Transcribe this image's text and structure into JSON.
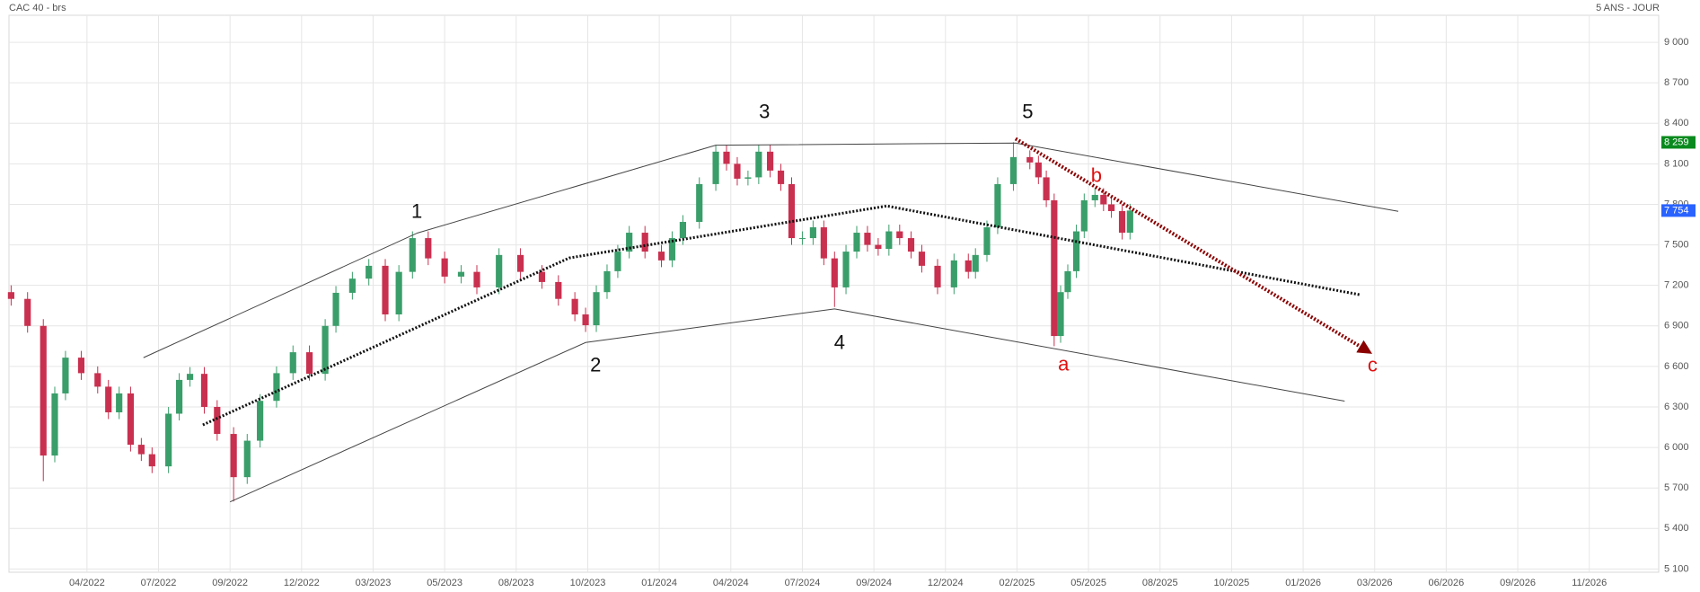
{
  "chart_data": {
    "type": "candlestick",
    "title": "CAC 40 - brs",
    "subtitle": "5 ANS - JOUR",
    "up_color": "#3a9e6a",
    "down_color": "#c9304f",
    "grid": true,
    "xlim": [
      -0.09,
      22.97
    ],
    "xticks": [
      {
        "value": 1,
        "label": "04/2022"
      },
      {
        "value": 2,
        "label": "07/2022"
      },
      {
        "value": 3,
        "label": "09/2022"
      },
      {
        "value": 4,
        "label": "12/2022"
      },
      {
        "value": 5,
        "label": "03/2023"
      },
      {
        "value": 6,
        "label": "05/2023"
      },
      {
        "value": 7,
        "label": "08/2023"
      },
      {
        "value": 8,
        "label": "10/2023"
      },
      {
        "value": 9,
        "label": "01/2024"
      },
      {
        "value": 10,
        "label": "04/2024"
      },
      {
        "value": 11,
        "label": "07/2024"
      },
      {
        "value": 12,
        "label": "09/2024"
      },
      {
        "value": 13,
        "label": "12/2024"
      },
      {
        "value": 14,
        "label": "02/2025"
      },
      {
        "value": 15,
        "label": "05/2025"
      },
      {
        "value": 16,
        "label": "08/2025"
      },
      {
        "value": 17,
        "label": "10/2025"
      },
      {
        "value": 18,
        "label": "01/2026"
      },
      {
        "value": 19,
        "label": "03/2026"
      },
      {
        "value": 20,
        "label": "06/2026"
      },
      {
        "value": 21,
        "label": "09/2026"
      },
      {
        "value": 22,
        "label": "11/2026"
      }
    ],
    "ylim": [
      5076,
      9200
    ],
    "yticks": [
      {
        "value": 5100,
        "label": "5 100"
      },
      {
        "value": 5400,
        "label": "5 400"
      },
      {
        "value": 5700,
        "label": "5 700"
      },
      {
        "value": 6000,
        "label": "6 000"
      },
      {
        "value": 6300,
        "label": "6 300"
      },
      {
        "value": 6600,
        "label": "6 600"
      },
      {
        "value": 6900,
        "label": "6 900"
      },
      {
        "value": 7200,
        "label": "7 200"
      },
      {
        "value": 7500,
        "label": "7 500"
      },
      {
        "value": 7800,
        "label": "7 800"
      },
      {
        "value": 8100,
        "label": "8 100"
      },
      {
        "value": 8400,
        "label": "8 400"
      },
      {
        "value": 8700,
        "label": "8 700"
      },
      {
        "value": 9000,
        "label": "9 000"
      }
    ],
    "x": [
      -0.06,
      0.17,
      0.39,
      0.55,
      0.7,
      0.92,
      1.15,
      1.3,
      1.45,
      1.61,
      1.76,
      1.91,
      2.14,
      2.29,
      2.44,
      2.64,
      2.82,
      3.05,
      3.24,
      3.42,
      3.65,
      3.88,
      4.11,
      4.33,
      4.48,
      4.71,
      4.94,
      5.17,
      5.36,
      5.55,
      5.77,
      6.0,
      6.23,
      6.45,
      6.76,
      7.06,
      7.36,
      7.59,
      7.82,
      7.97,
      8.12,
      8.27,
      8.42,
      8.58,
      8.8,
      9.03,
      9.18,
      9.33,
      9.56,
      9.79,
      9.94,
      10.09,
      10.24,
      10.39,
      10.55,
      10.7,
      10.85,
      11.0,
      11.15,
      11.3,
      11.45,
      11.61,
      11.76,
      11.91,
      12.06,
      12.21,
      12.36,
      12.52,
      12.67,
      12.89,
      13.12,
      13.32,
      13.42,
      13.58,
      13.73,
      13.95,
      14.18,
      14.3,
      14.41,
      14.52,
      14.61,
      14.71,
      14.83,
      14.94,
      15.09,
      15.21,
      15.32,
      15.47,
      15.58
    ],
    "open": [
      7150,
      7100,
      6900,
      5940,
      6400,
      6665,
      6550,
      6450,
      6260,
      6400,
      6020,
      5950,
      5860,
      6250,
      6500,
      6545,
      6300,
      6100,
      5780,
      6050,
      6345,
      6550,
      6705,
      6545,
      6900,
      7145,
      7250,
      7345,
      6985,
      7300,
      7550,
      7400,
      7265,
      7300,
      7185,
      7425,
      7300,
      7225,
      7100,
      6985,
      6905,
      7150,
      7305,
      7450,
      7590,
      7450,
      7385,
      7550,
      7670,
      7950,
      8190,
      8100,
      7990,
      8000,
      8190,
      8050,
      7950,
      7550,
      7550,
      7630,
      7400,
      7185,
      7450,
      7590,
      7500,
      7470,
      7600,
      7550,
      7450,
      7345,
      7185,
      7385,
      7300,
      7425,
      7630,
      7950,
      8150,
      8110,
      8000,
      7830,
      6825,
      7150,
      7305,
      7600,
      7830,
      7870,
      7800,
      7750,
      7590
    ],
    "high": [
      7200,
      7150,
      6950,
      6450,
      6715,
      6715,
      6600,
      6500,
      6450,
      6450,
      6070,
      6000,
      6300,
      6550,
      6595,
      6595,
      6350,
      6150,
      6100,
      6395,
      6600,
      6755,
      6755,
      6950,
      7195,
      7300,
      7395,
      7395,
      7350,
      7600,
      7600,
      7450,
      7350,
      7350,
      7475,
      7475,
      7350,
      7275,
      7150,
      7035,
      7200,
      7355,
      7500,
      7640,
      7640,
      7500,
      7600,
      7720,
      8000,
      8240,
      8240,
      8150,
      8050,
      8240,
      8240,
      8100,
      8000,
      7600,
      7680,
      7680,
      7450,
      7500,
      7640,
      7640,
      7550,
      7650,
      7650,
      7600,
      7500,
      7395,
      7435,
      7435,
      7475,
      7680,
      8000,
      8260,
      8200,
      8160,
      8050,
      7880,
      7200,
      7355,
      7650,
      7880,
      7920,
      7920,
      7850,
      7800,
      7804
    ],
    "low": [
      7050,
      6850,
      5750,
      5890,
      6350,
      6500,
      6400,
      6210,
      6210,
      5970,
      5900,
      5810,
      5810,
      6200,
      6450,
      6250,
      6050,
      5600,
      5730,
      6000,
      6295,
      6500,
      6495,
      6495,
      6850,
      7095,
      7200,
      6935,
      6935,
      7250,
      7350,
      7215,
      7215,
      7135,
      7135,
      7250,
      7175,
      7050,
      6935,
      6855,
      6855,
      7100,
      7255,
      7400,
      7400,
      7335,
      7335,
      7500,
      7620,
      7900,
      8050,
      7940,
      7940,
      7950,
      8000,
      7900,
      7500,
      7500,
      7500,
      7350,
      7040,
      7135,
      7400,
      7450,
      7420,
      7420,
      7500,
      7400,
      7295,
      7135,
      7135,
      7250,
      7250,
      7375,
      7580,
      7900,
      8060,
      7950,
      7780,
      6750,
      6775,
      7100,
      7255,
      7550,
      7780,
      7750,
      7700,
      7540,
      7540
    ],
    "close": [
      7100,
      6900,
      5940,
      6400,
      6665,
      6550,
      6450,
      6260,
      6400,
      6020,
      5950,
      5860,
      6250,
      6500,
      6545,
      6300,
      6100,
      5780,
      6050,
      6345,
      6550,
      6705,
      6545,
      6900,
      7145,
      7250,
      7345,
      6985,
      7300,
      7550,
      7400,
      7265,
      7300,
      7185,
      7425,
      7300,
      7225,
      7100,
      6985,
      6905,
      7150,
      7305,
      7450,
      7590,
      7450,
      7385,
      7550,
      7670,
      7950,
      8190,
      8100,
      7990,
      8000,
      8190,
      8050,
      7950,
      7550,
      7550,
      7630,
      7400,
      7185,
      7450,
      7590,
      7500,
      7470,
      7600,
      7550,
      7450,
      7345,
      7185,
      7385,
      7300,
      7425,
      7630,
      7950,
      8150,
      8110,
      8000,
      7830,
      6825,
      7150,
      7305,
      7600,
      7830,
      7870,
      7800,
      7750,
      7590,
      7754
    ],
    "lines": [
      {
        "style": "solid",
        "color": "#444444",
        "x": [
          1.79,
          5.62,
          9.79,
          13.98,
          19.33
        ],
        "y": [
          6665,
          7588,
          8238,
          8254,
          7748
        ]
      },
      {
        "style": "solid",
        "color": "#444444",
        "x": [
          3.0,
          7.97,
          11.45,
          18.58
        ],
        "y": [
          5597,
          6777,
          7026,
          6343
        ]
      },
      {
        "style": "dotted",
        "color": "#111111",
        "x": [
          2.62,
          7.74,
          12.18,
          18.8
        ],
        "y": [
          6167,
          7403,
          7788,
          7130
        ]
      },
      {
        "style": "dotted",
        "color": "#8b0000",
        "arrow": true,
        "x": [
          13.98,
          18.88
        ],
        "y": [
          8286,
          6721
        ]
      }
    ],
    "annotations": [
      {
        "text": "1",
        "x": 5.61,
        "y": 7740,
        "color": "#111111"
      },
      {
        "text": "2",
        "x": 8.11,
        "y": 6600,
        "color": "#111111"
      },
      {
        "text": "3",
        "x": 10.47,
        "y": 8478,
        "color": "#111111"
      },
      {
        "text": "4",
        "x": 11.52,
        "y": 6769,
        "color": "#111111"
      },
      {
        "text": "5",
        "x": 14.15,
        "y": 8478,
        "color": "#111111"
      },
      {
        "text": "a",
        "x": 14.65,
        "y": 6608,
        "color": "#e01010"
      },
      {
        "text": "b",
        "x": 15.11,
        "y": 8005,
        "color": "#e01010"
      },
      {
        "text": "c",
        "x": 18.97,
        "y": 6600,
        "color": "#e01010"
      }
    ],
    "price_tags": [
      {
        "value": 8259,
        "label": "8 259",
        "color": "#0a8a1e"
      },
      {
        "value": 7754,
        "label": "7 754",
        "color": "#2962ff"
      }
    ]
  }
}
